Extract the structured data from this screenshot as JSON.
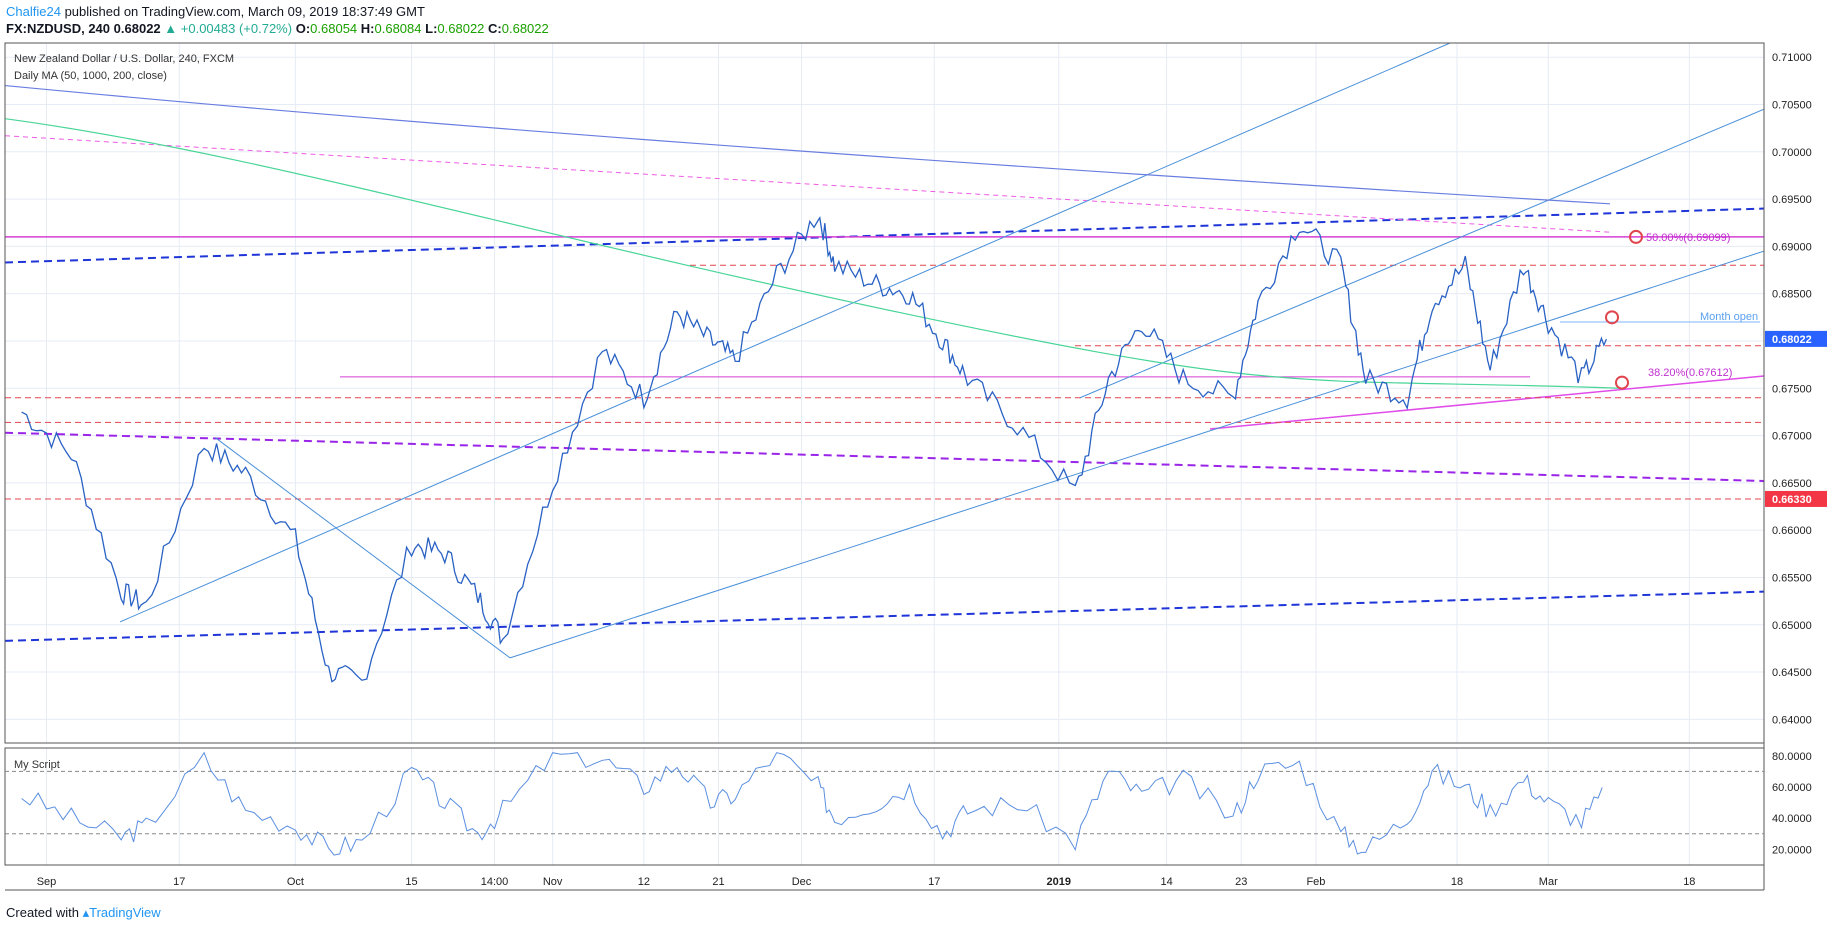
{
  "header": {
    "user": "Chalfie24",
    "published_text": "published on TradingView.com, March 09, 2019 18:37:49 GMT"
  },
  "ohlc": {
    "symbol": "FX:NZDUSD, 240",
    "last": "0.68022",
    "change": "▲ +0.00483 (+0.72%)",
    "open_label": "O:",
    "open": "0.68054",
    "high_label": "H:",
    "high": "0.68084",
    "low_label": "L:",
    "low": "0.68022",
    "close_label": "C:",
    "close": "0.68022"
  },
  "legend": {
    "title": "New Zealand Dollar / U.S. Dollar, 240, FXCM",
    "ma": "Daily MA (50, 1000, 200, close)",
    "indicator": "My Script"
  },
  "footer": {
    "created_with": "Created with",
    "brand": "TradingView"
  },
  "colors": {
    "candle": "#2962c4",
    "ma_green": "#48d597",
    "ma_blue": "#6a7ee0",
    "magenta": "#d53fd5",
    "dashed_blue": "#1f35d8",
    "dashed_purple": "#9a24e8",
    "red_dash": "#e0454d",
    "channel": "#4a90d9",
    "price_badge": "#2962ff",
    "red_badge": "#f23645"
  },
  "chart_data": [
    {
      "type": "line",
      "title": "New Zealand Dollar / U.S. Dollar, 240, FXCM",
      "ylim": [
        0.6375,
        0.7115
      ],
      "y_ticks": [
        "0.71000",
        "0.70500",
        "0.70000",
        "0.69500",
        "0.69000",
        "0.68500",
        "0.68000",
        "0.67500",
        "0.67000",
        "0.66500",
        "0.66000",
        "0.65500",
        "0.65000",
        "0.64500",
        "0.64000"
      ],
      "x_ticks": [
        "Sep",
        "17",
        "Oct",
        "15",
        "14:00",
        "Nov",
        "12",
        "21",
        "Dec",
        "17",
        "2019",
        "14",
        "23",
        "Feb",
        "18",
        "Mar",
        "18"
      ],
      "x": [
        "2018-08-29",
        "2018-09-04",
        "2018-09-10",
        "2018-09-13",
        "2018-09-20",
        "2018-09-25",
        "2018-10-01",
        "2018-10-05",
        "2018-10-09",
        "2018-10-15",
        "2018-10-19",
        "2018-10-23",
        "2018-10-26",
        "2018-11-01",
        "2018-11-07",
        "2018-11-12",
        "2018-11-16",
        "2018-11-20",
        "2018-11-23",
        "2018-11-28",
        "2018-12-03",
        "2018-12-05",
        "2018-12-10",
        "2018-12-14",
        "2018-12-18",
        "2018-12-21",
        "2018-12-27",
        "2019-01-03",
        "2019-01-07",
        "2019-01-11",
        "2019-01-16",
        "2019-01-22",
        "2019-01-25",
        "2019-01-30",
        "2019-02-04",
        "2019-02-07",
        "2019-02-12",
        "2019-02-15",
        "2019-02-19",
        "2019-02-22",
        "2019-02-26",
        "2019-03-01",
        "2019-03-05",
        "2019-03-08"
      ],
      "series": [
        {
          "values": [
            0.6725,
            0.668,
            0.6535,
            0.652,
            0.669,
            0.666,
            0.659,
            0.645,
            0.644,
            0.6585,
            0.6575,
            0.653,
            0.6485,
            0.665,
            0.679,
            0.674,
            0.683,
            0.68,
            0.678,
            0.687,
            0.6935,
            0.688,
            0.686,
            0.685,
            0.68,
            0.676,
            0.671,
            0.664,
            0.676,
            0.682,
            0.676,
            0.674,
            0.684,
            0.6925,
            0.688,
            0.676,
            0.674,
            0.684,
            0.688,
            0.677,
            0.688,
            0.682,
            0.676,
            0.6802
          ]
        },
        {
          "name": "My Script",
          "ylim": [
            10,
            85
          ],
          "y_ticks": [
            "80.0000",
            "60.0000",
            "40.0000",
            "20.0000"
          ],
          "values": [
            55,
            40,
            28,
            35,
            78,
            45,
            35,
            20,
            25,
            70,
            50,
            30,
            45,
            80,
            78,
            60,
            75,
            50,
            55,
            82,
            60,
            40,
            50,
            60,
            30,
            45,
            50,
            25,
            70,
            55,
            65,
            40,
            70,
            75,
            30,
            20,
            40,
            70,
            60,
            45,
            65,
            50,
            38,
            58
          ]
        }
      ],
      "annotations": [
        "50.00%(0.69099)",
        "38.20%(0.67612)",
        "Month open"
      ],
      "price_labels": [
        "0.68022",
        "0.66330"
      ]
    }
  ]
}
